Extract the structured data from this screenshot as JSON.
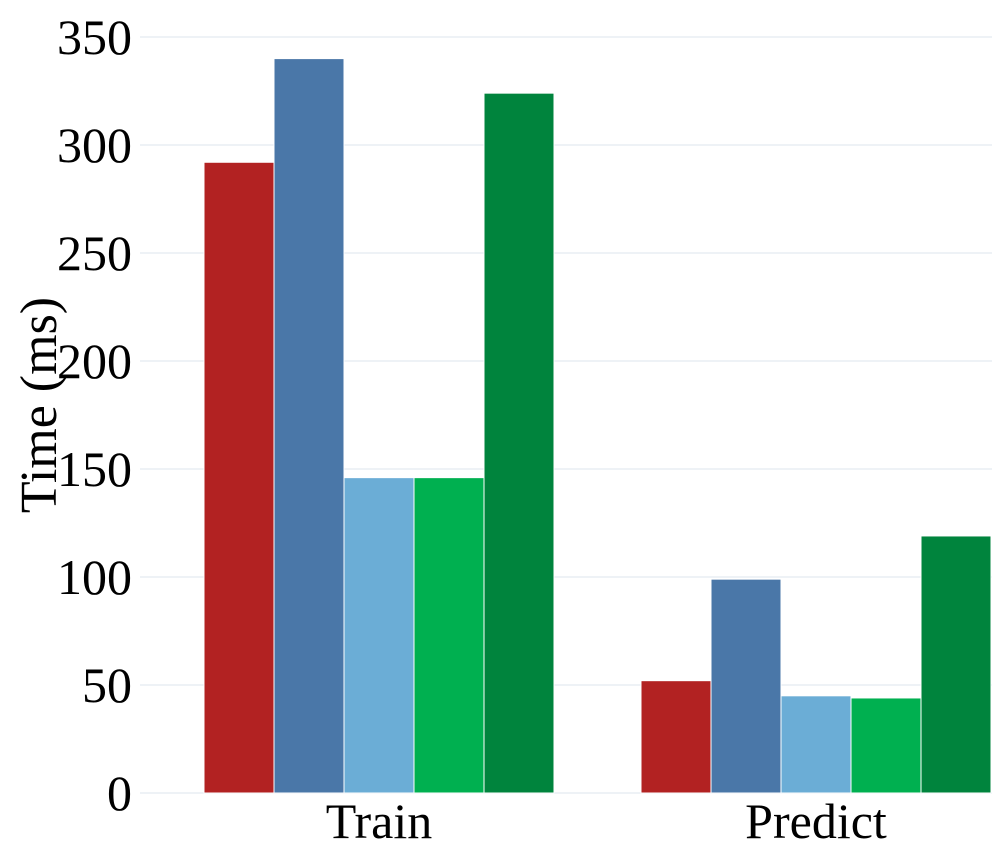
{
  "chart_data": {
    "type": "bar",
    "title": "",
    "xlabel": "",
    "ylabel": "Time (ms)",
    "ylim": [
      0,
      350
    ],
    "yticks": [
      0,
      50,
      100,
      150,
      200,
      250,
      300,
      350
    ],
    "grid": true,
    "legend": "none",
    "categories": [
      "Train",
      "Predict"
    ],
    "series": [
      {
        "color": "#b22222",
        "values": [
          292,
          52
        ]
      },
      {
        "color": "#4a77a8",
        "values": [
          340,
          99
        ]
      },
      {
        "color": "#6badd6",
        "values": [
          146,
          45
        ]
      },
      {
        "color": "#00b050",
        "values": [
          146,
          44
        ]
      },
      {
        "color": "#00843d",
        "values": [
          324,
          119
        ]
      }
    ]
  }
}
